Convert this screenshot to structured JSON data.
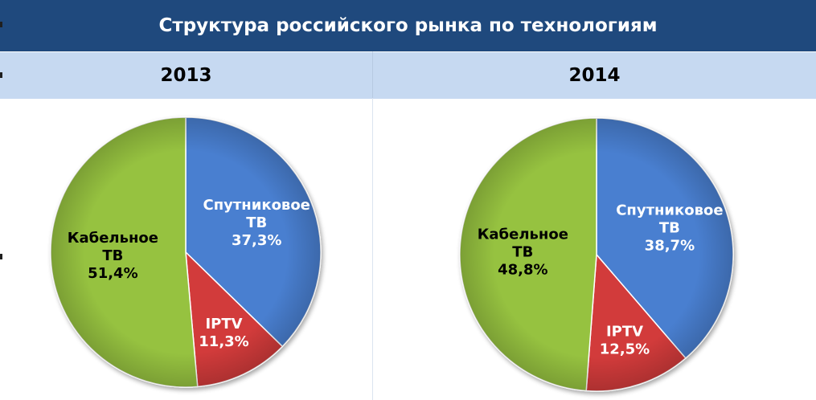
{
  "title": "Структура российского рынка по технологиям",
  "years": [
    "2013",
    "2014"
  ],
  "colors": {
    "satellite": "#4a7fd0",
    "iptv": "#d23a3a",
    "cable": "#96c240",
    "title_bg": "#1f497d",
    "year_bg": "#c6d9f1"
  },
  "chart_data": [
    {
      "type": "pie",
      "title": "2013",
      "series": [
        {
          "name": "Спутниковое ТВ",
          "label_lines": [
            "Спутниковое",
            "ТВ"
          ],
          "value": 37.3,
          "value_label": "37,3%"
        },
        {
          "name": "IPTV",
          "label_lines": [
            "IPTV"
          ],
          "value": 11.3,
          "value_label": "11,3%"
        },
        {
          "name": "Кабельное ТВ",
          "label_lines": [
            "Кабельное",
            "ТВ"
          ],
          "value": 51.4,
          "value_label": "51,4%"
        }
      ]
    },
    {
      "type": "pie",
      "title": "2014",
      "series": [
        {
          "name": "Спутниковое ТВ",
          "label_lines": [
            "Спутниковое",
            "ТВ"
          ],
          "value": 38.7,
          "value_label": "38,7%"
        },
        {
          "name": "IPTV",
          "label_lines": [
            "IPTV"
          ],
          "value": 12.5,
          "value_label": "12,5%"
        },
        {
          "name": "Кабельное ТВ",
          "label_lines": [
            "Кабельное",
            "ТВ"
          ],
          "value": 48.8,
          "value_label": "48,8%"
        }
      ]
    }
  ]
}
